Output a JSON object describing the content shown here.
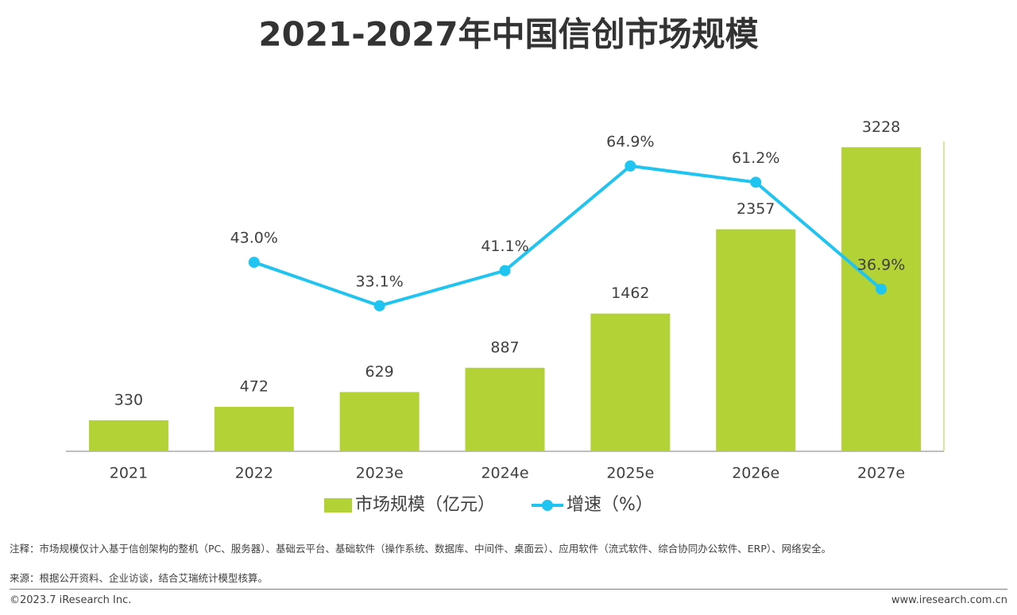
{
  "chart_data": {
    "type": "bar-line",
    "title": "2021-2027年中国信创市场规模",
    "categories": [
      "2021",
      "2022",
      "2023e",
      "2024e",
      "2025e",
      "2026e",
      "2027e"
    ],
    "series": [
      {
        "name": "市场规模（亿元）",
        "type": "bar",
        "color": "#b2d235",
        "values": [
          330,
          472,
          629,
          887,
          1462,
          2357,
          3228
        ]
      },
      {
        "name": "增速（%）",
        "type": "line",
        "axis": "y2",
        "color": "#20c4f0",
        "values": [
          null,
          43.0,
          33.1,
          41.1,
          64.9,
          61.2,
          36.9
        ],
        "value_labels": [
          null,
          "43.0%",
          "33.1%",
          "41.1%",
          "64.9%",
          "61.2%",
          "36.9%"
        ]
      }
    ],
    "ylim": [
      0,
      3500
    ],
    "y2lim": [
      0,
      75
    ],
    "grid": false,
    "legend": "bottom"
  },
  "footer": {
    "note": "注释：市场规模仅计入基于信创架构的整机（PC、服务器）、基础云平台、基础软件（操作系统、数据库、中间件、桌面云）、应用软件（流式软件、综合协同办公软件、ERP）、网络安全。",
    "source": "来源：根据公开资料、企业访谈，结合艾瑞统计模型核算。",
    "copyright": "©2023.7 iResearch Inc.",
    "website": "www.iresearch.com.cn"
  }
}
